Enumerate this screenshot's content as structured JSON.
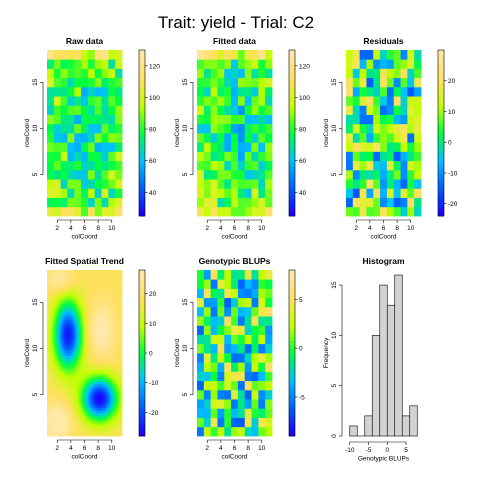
{
  "page_title": "Trait: yield - Trial: C2",
  "colors": {
    "grid_palette": [
      "#1a00ff",
      "#0060ff",
      "#00c0ff",
      "#00ff40",
      "#c0ff00",
      "#ffe060",
      "#ffe8a8"
    ],
    "hist_fill": "#d3d3d3",
    "stroke": "#000000"
  },
  "chart_data": [
    {
      "type": "heatmap",
      "title": "Raw data",
      "xlabel": "colCoord",
      "ylabel": "rowCoord",
      "xticks": [
        2,
        4,
        6,
        8,
        10
      ],
      "yticks": [
        5,
        10,
        15
      ],
      "xlim": [
        0.5,
        11.5
      ],
      "ylim": [
        0.5,
        18.5
      ],
      "legend_ticks": [
        40,
        60,
        80,
        100,
        120
      ],
      "zlim": [
        25,
        130
      ],
      "grid_cols": 11,
      "grid_rows": 18,
      "seed": 11
    },
    {
      "type": "heatmap",
      "title": "Fitted data",
      "xlabel": "colCoord",
      "ylabel": "rowCoord",
      "xticks": [
        2,
        4,
        6,
        8,
        10
      ],
      "yticks": [
        5,
        10,
        15
      ],
      "xlim": [
        0.5,
        11.5
      ],
      "ylim": [
        0.5,
        18.5
      ],
      "legend_ticks": [
        40,
        60,
        80,
        100,
        120
      ],
      "zlim": [
        25,
        130
      ],
      "grid_cols": 11,
      "grid_rows": 18,
      "seed": 23
    },
    {
      "type": "heatmap",
      "title": "Residuals",
      "xlabel": "colCoord",
      "ylabel": "rowCoord",
      "xticks": [
        2,
        4,
        6,
        8,
        10
      ],
      "yticks": [
        5,
        10,
        15
      ],
      "xlim": [
        0.5,
        11.5
      ],
      "ylim": [
        0.5,
        18.5
      ],
      "legend_ticks": [
        -20,
        -10,
        0,
        10,
        20
      ],
      "zlim": [
        -24,
        30
      ],
      "grid_cols": 11,
      "grid_rows": 18,
      "seed": 37
    },
    {
      "type": "heatmap",
      "title": "Fitted Spatial Trend",
      "xlabel": "colCoord",
      "ylabel": "rowCoord",
      "xticks": [
        2,
        4,
        6,
        8,
        10
      ],
      "yticks": [
        5,
        10,
        15
      ],
      "xlim": [
        0.5,
        11.5
      ],
      "ylim": [
        0.5,
        18.5
      ],
      "legend_ticks": [
        -20,
        -10,
        0,
        10,
        20
      ],
      "zlim": [
        -28,
        28
      ],
      "grid_cols": 44,
      "grid_rows": 64,
      "smooth": true
    },
    {
      "type": "heatmap",
      "title": "Genotypic BLUPs",
      "xlabel": "colCoord",
      "ylabel": "rowCoord",
      "xticks": [
        2,
        4,
        6,
        8,
        10
      ],
      "yticks": [
        5,
        10,
        15
      ],
      "xlim": [
        0.5,
        11.5
      ],
      "ylim": [
        0.5,
        18.5
      ],
      "legend_ticks": [
        -5,
        0,
        5
      ],
      "zlim": [
        -9,
        8
      ],
      "grid_cols": 11,
      "grid_rows": 18,
      "seed": 53
    },
    {
      "type": "bar",
      "title": "Histogram",
      "xlabel": "Genotypic BLUPs",
      "ylabel": "Frequency",
      "bin_edges": [
        -10,
        -8,
        -6,
        -4,
        -2,
        0,
        2,
        4,
        6,
        8
      ],
      "values": [
        1,
        0,
        2,
        10,
        15,
        13,
        16,
        2,
        3
      ],
      "xticks": [
        -10,
        -5,
        0,
        5
      ],
      "yticks": [
        0,
        5,
        10,
        15
      ],
      "xlim": [
        -11,
        9
      ],
      "ylim": [
        0,
        16.5
      ]
    }
  ]
}
